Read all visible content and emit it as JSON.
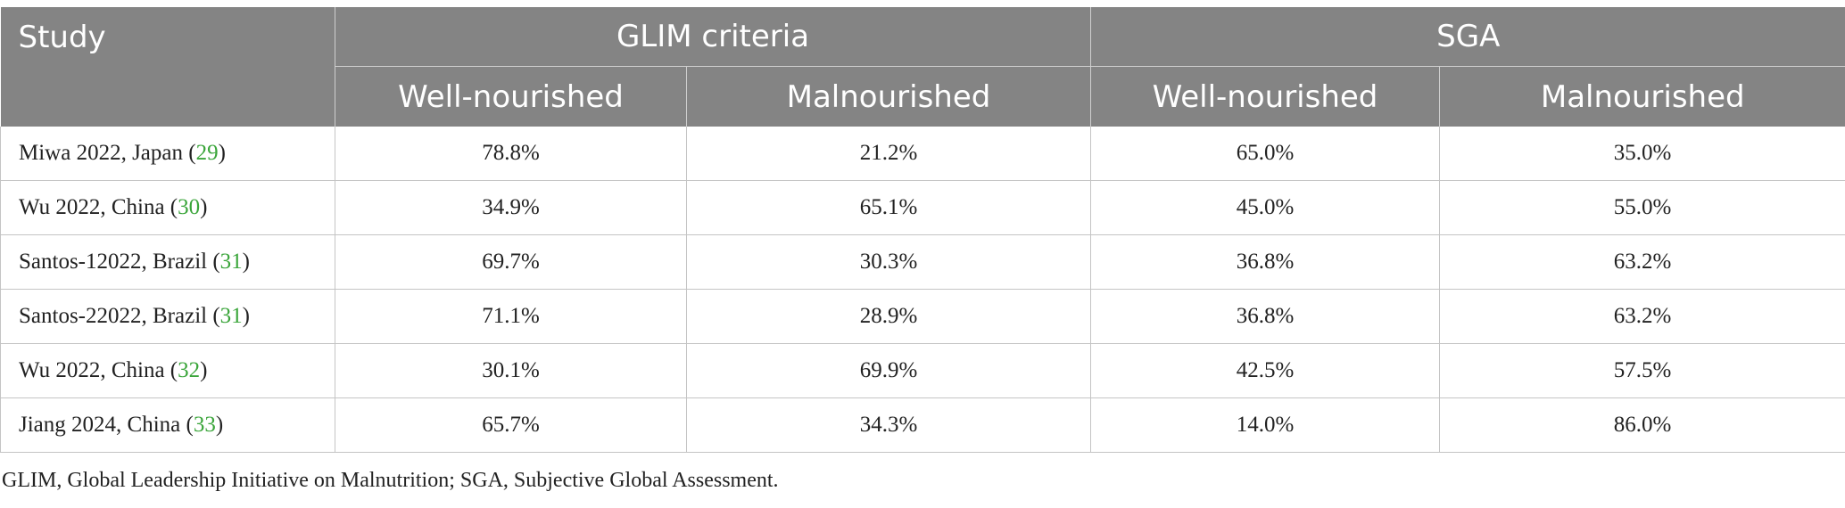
{
  "table": {
    "header": {
      "study": "Study",
      "glim": "GLIM criteria",
      "sga": "SGA",
      "sub": [
        "Well-nourished",
        "Malnourished",
        "Well-nourished",
        "Malnourished"
      ]
    },
    "rows": [
      {
        "study": "Miwa 2022, Japan (",
        "ref": "29",
        "close": ")",
        "values": [
          "78.8%",
          "21.2%",
          "65.0%",
          "35.0%"
        ]
      },
      {
        "study": "Wu 2022, China (",
        "ref": "30",
        "close": ")",
        "values": [
          "34.9%",
          "65.1%",
          "45.0%",
          "55.0%"
        ]
      },
      {
        "study": "Santos-12022, Brazil (",
        "ref": "31",
        "close": ")",
        "values": [
          "69.7%",
          "30.3%",
          "36.8%",
          "63.2%"
        ]
      },
      {
        "study": "Santos-22022, Brazil (",
        "ref": "31",
        "close": ")",
        "values": [
          "71.1%",
          "28.9%",
          "36.8%",
          "63.2%"
        ]
      },
      {
        "study": "Wu 2022, China (",
        "ref": "32",
        "close": ")",
        "values": [
          "30.1%",
          "69.9%",
          "42.5%",
          "57.5%"
        ]
      },
      {
        "study": "Jiang 2024, China (",
        "ref": "33",
        "close": ")",
        "values": [
          "65.7%",
          "34.3%",
          "14.0%",
          "86.0%"
        ]
      }
    ]
  },
  "footnote": "GLIM, Global Leadership Initiative on Malnutrition; SGA, Subjective Global Assessment."
}
